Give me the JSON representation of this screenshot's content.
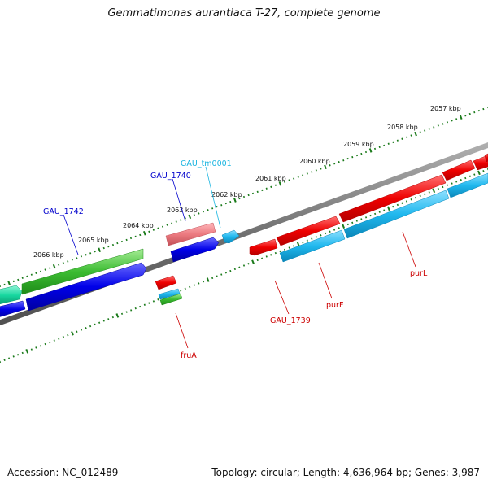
{
  "title": "Gemmatimonas aurantiaca T-27, complete genome",
  "footer": {
    "accession": "Accession: NC_012489",
    "summary": "Topology: circular; Length: 4,636,964 bp; Genes: 3,987"
  },
  "colors": {
    "backbone": "#7a7a7a",
    "ticks": "#1a7a1a",
    "red": "#e80000",
    "blue": "#0000e0",
    "cyan": "#1ab0e8",
    "green": "#3cb832",
    "teal": "#18d8a0",
    "pink": "#ec7a80",
    "label_blue": "#0000cc",
    "label_cyan": "#18b4e0",
    "label_red": "#cc0000"
  },
  "kbp_labels": [
    "2057 kbp",
    "2058 kbp",
    "2059 kbp",
    "2060 kbp",
    "2061 kbp",
    "2062 kbp",
    "2063 kbp",
    "2064 kbp",
    "2065 kbp",
    "2066 kbp"
  ],
  "gene_labels": [
    {
      "id": "gau-tm0001",
      "text": "GAU_tm0001",
      "color": "label_cyan"
    },
    {
      "id": "gau-1740",
      "text": "GAU_1740",
      "color": "label_blue"
    },
    {
      "id": "gau-1742",
      "text": "GAU_1742",
      "color": "label_blue"
    },
    {
      "id": "purl",
      "text": "purL",
      "color": "label_red"
    },
    {
      "id": "purf",
      "text": "purF",
      "color": "label_red"
    },
    {
      "id": "gau-1739",
      "text": "GAU_1739",
      "color": "label_red"
    },
    {
      "id": "frua",
      "text": "fruA",
      "color": "label_red"
    }
  ]
}
